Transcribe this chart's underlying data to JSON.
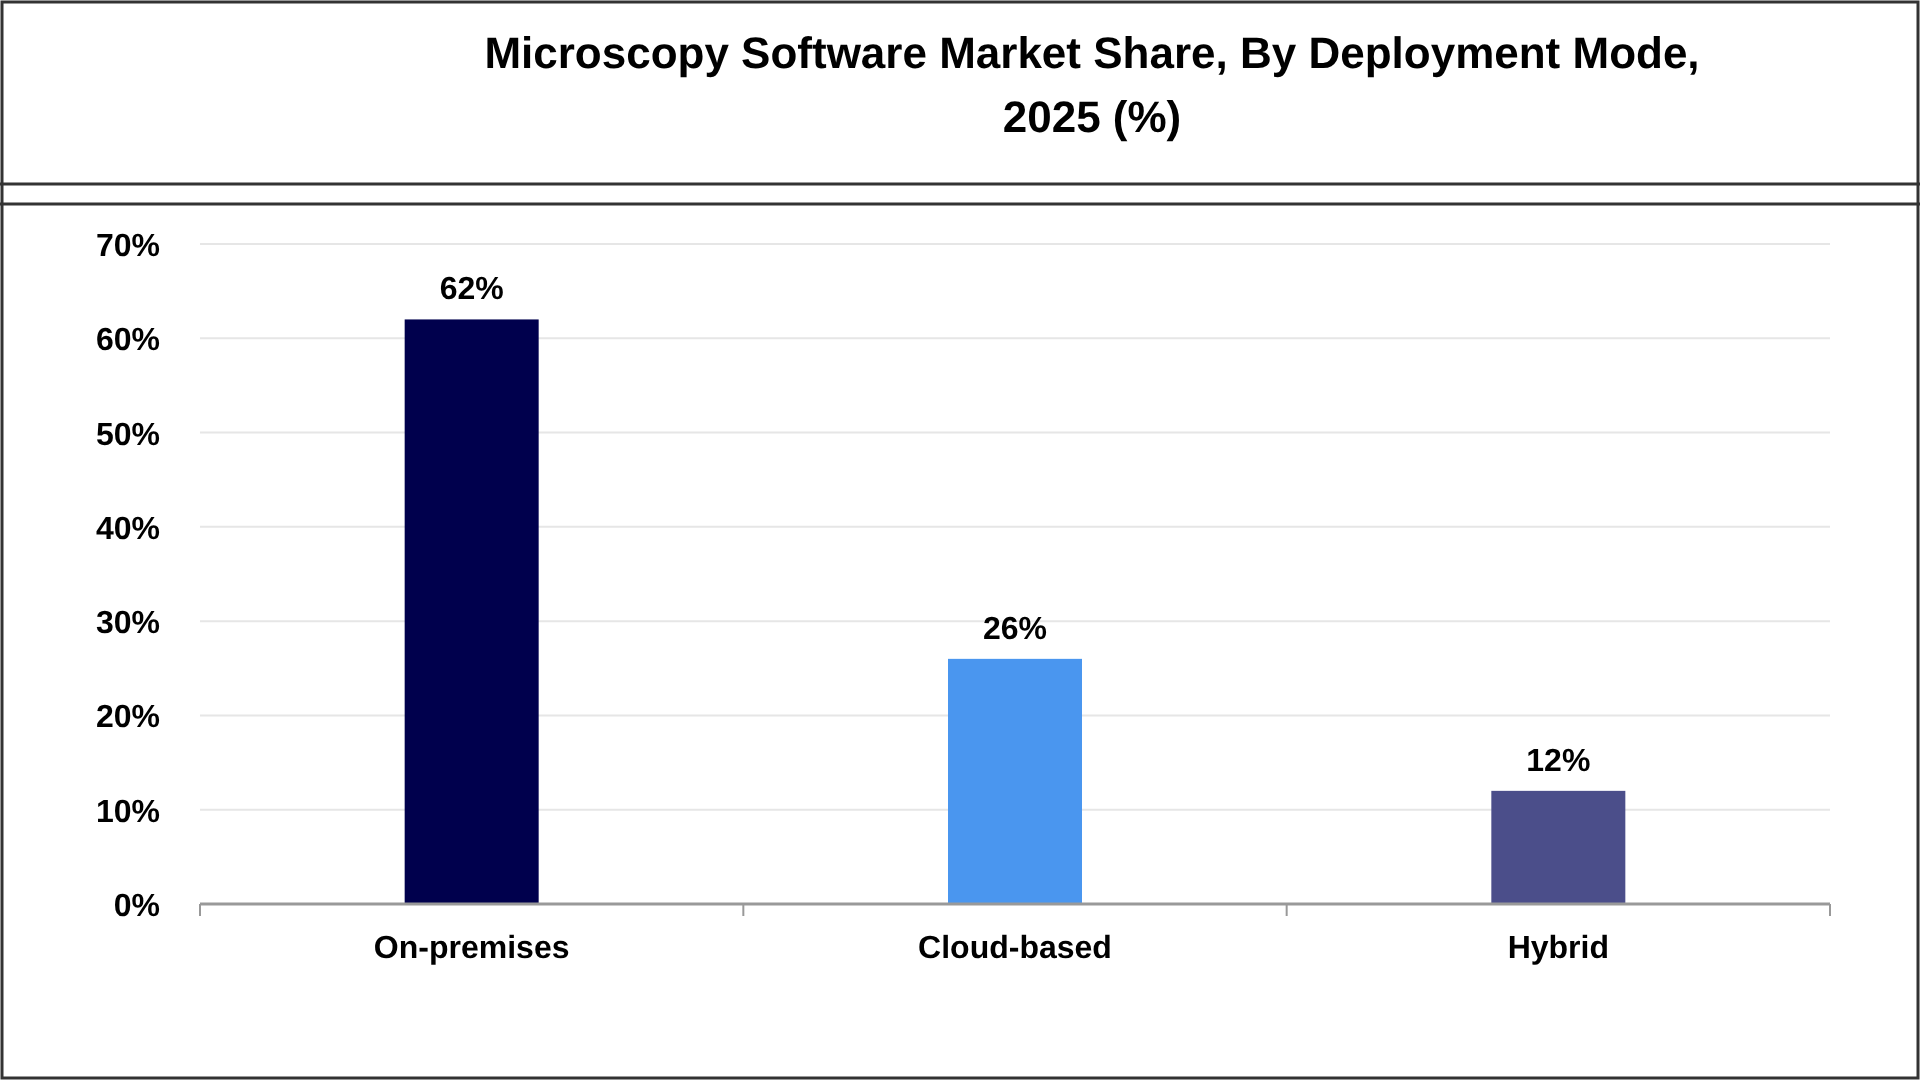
{
  "chart_data": {
    "type": "bar",
    "title": "Microscopy Software Market Share, By Deployment Mode, 2025 (%)",
    "categories": [
      "On-premises",
      "Cloud-based",
      "Hybrid"
    ],
    "values": [
      62,
      26,
      12
    ],
    "colors": [
      "#00004d",
      "#4a96ef",
      "#4b4e8a"
    ],
    "value_labels": [
      "62%",
      "26%",
      "12%"
    ],
    "ylim": [
      0,
      70
    ],
    "yticks": [
      {
        "value": 0,
        "label": "0%"
      },
      {
        "value": 10,
        "label": "10%"
      },
      {
        "value": 20,
        "label": "20%"
      },
      {
        "value": 30,
        "label": "30%"
      },
      {
        "value": 40,
        "label": "40%"
      },
      {
        "value": 50,
        "label": "50%"
      },
      {
        "value": 60,
        "label": "60%"
      },
      {
        "value": 70,
        "label": "70%"
      }
    ],
    "grid": "y"
  }
}
